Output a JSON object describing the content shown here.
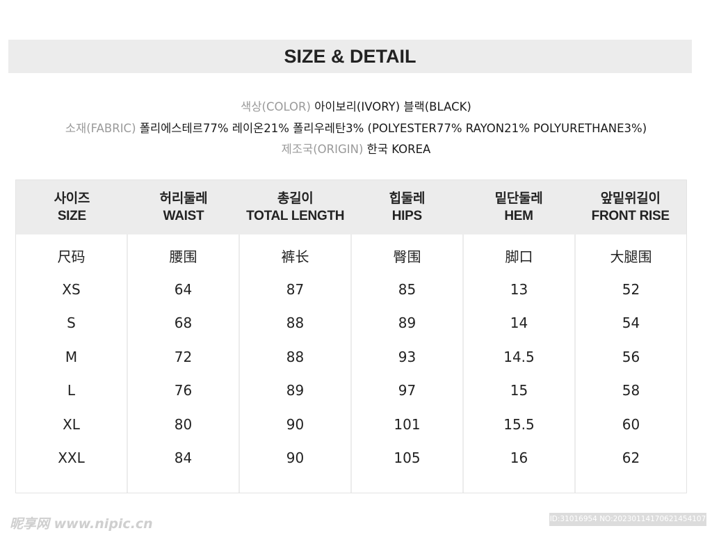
{
  "title": "SIZE & DETAIL",
  "details": {
    "color_label": "색상(COLOR)",
    "color_value": "아이보리(IVORY) 블랙(BLACK)",
    "fabric_label": "소재(FABRIC)",
    "fabric_value": "폴리에스테르77% 레이온21% 폴리우레탄3% (POLYESTER77% RAYON21% POLYURETHANE3%)",
    "origin_label": "제조국(ORIGIN)",
    "origin_value": "한국 KOREA"
  },
  "table": {
    "headers": [
      {
        "ko": "사이즈",
        "en": "SIZE"
      },
      {
        "ko": "허리둘레",
        "en": "WAIST"
      },
      {
        "ko": "총길이",
        "en": "TOTAL LENGTH"
      },
      {
        "ko": "힙둘레",
        "en": "HIPS"
      },
      {
        "ko": "밑단둘레",
        "en": "HEM"
      },
      {
        "ko": "앞밑위길이",
        "en": "FRONT RISE"
      }
    ],
    "columns": [
      [
        "尺码",
        "XS",
        "S",
        "M",
        "L",
        "XL",
        "XXL"
      ],
      [
        "腰围",
        "64",
        "68",
        "72",
        "76",
        "80",
        "84"
      ],
      [
        "裤长",
        "87",
        "88",
        "88",
        "89",
        "90",
        "90"
      ],
      [
        "臀围",
        "85",
        "89",
        "93",
        "97",
        "101",
        "105"
      ],
      [
        "脚口",
        "13",
        "14",
        "14.5",
        "15",
        "15.5",
        "16"
      ],
      [
        "大腿围",
        "52",
        "54",
        "56",
        "58",
        "60",
        "62"
      ]
    ]
  },
  "watermark": {
    "left": "昵享网 www.nipic.cn",
    "right": "ID:31016954 NO:20230114170621454107"
  }
}
